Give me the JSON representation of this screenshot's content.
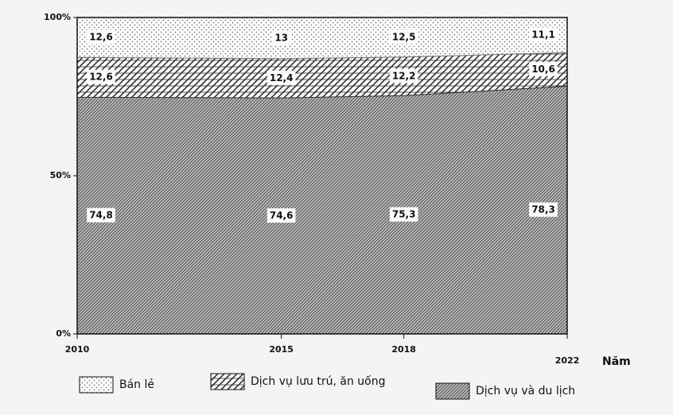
{
  "chart_data": {
    "type": "stacked-area",
    "x": [
      2010,
      2015,
      2018,
      2022
    ],
    "xlim": [
      2010,
      2022
    ],
    "xticks": [
      2010,
      2015,
      2018,
      2022
    ],
    "xlabel": "Năm",
    "ylim": [
      0,
      100
    ],
    "yticks": [
      {
        "value": 0,
        "label": "0%"
      },
      {
        "value": 50,
        "label": "50%"
      },
      {
        "value": 100,
        "label": "100%"
      }
    ],
    "series": [
      {
        "name": "Dịch vụ và du lịch",
        "color": "#555555",
        "pattern": "diagonal",
        "values": [
          74.8,
          74.6,
          75.3,
          78.3
        ],
        "value_labels": [
          "74,8",
          "74,6",
          "75,3",
          "78,3"
        ]
      },
      {
        "name": "Dịch vụ lưu trú, ăn uống",
        "color": "#333333",
        "pattern": "brick",
        "values": [
          12.6,
          12.4,
          12.2,
          10.6
        ],
        "value_labels": [
          "12,6",
          "12,4",
          "12,2",
          "10,6"
        ]
      },
      {
        "name": "Bán lẻ",
        "color": "#777777",
        "pattern": "dots",
        "values": [
          12.6,
          13,
          12.5,
          11.1
        ],
        "value_labels": [
          "12,6",
          "13",
          "12,5",
          "11,1"
        ]
      }
    ],
    "legend_order": [
      2,
      1,
      0
    ]
  }
}
